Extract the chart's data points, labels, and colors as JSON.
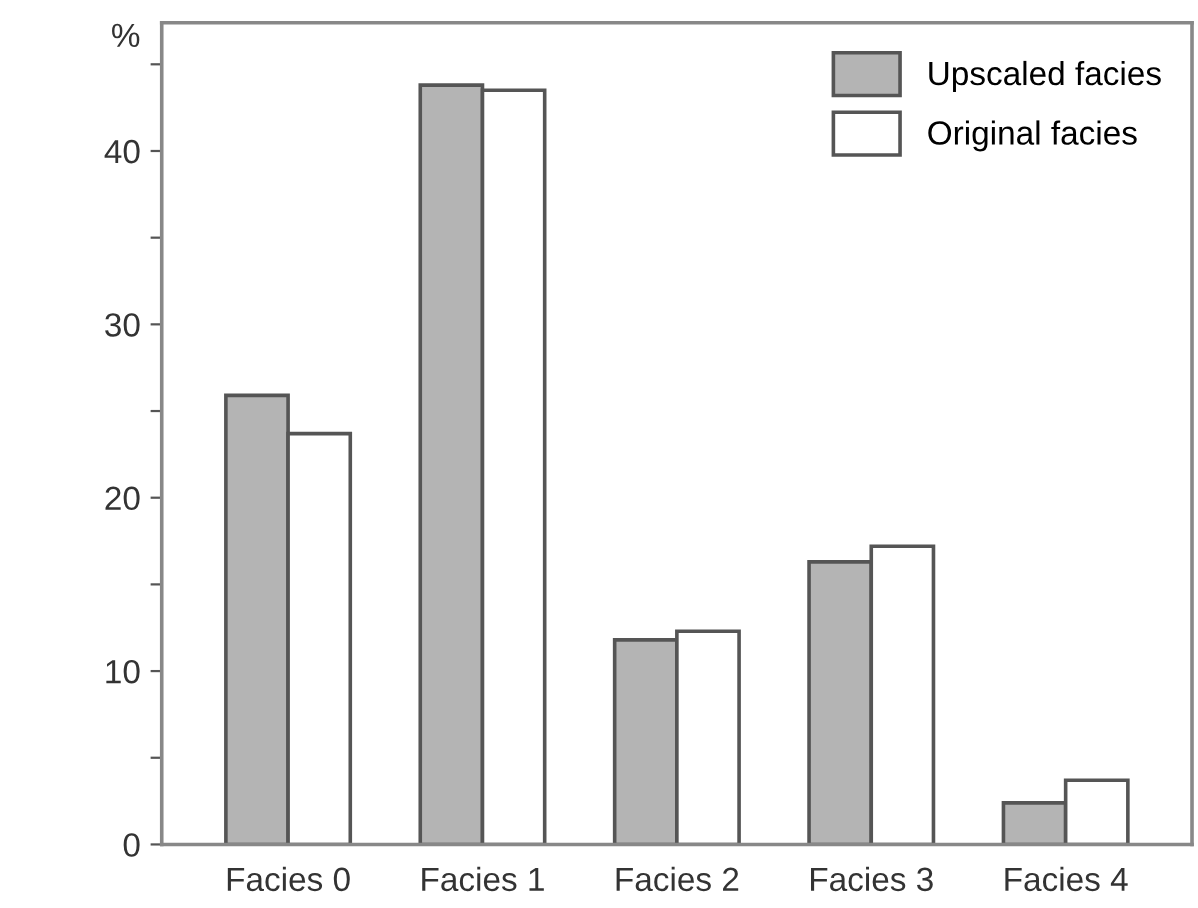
{
  "chart_data": {
    "type": "bar",
    "ylabel": "%",
    "categories": [
      "Facies 0",
      "Facies 1",
      "Facies 2",
      "Facies 3",
      "Facies 4"
    ],
    "series": [
      {
        "name": "Upscaled facies",
        "color": "#b4b4b4",
        "values": [
          25.9,
          43.8,
          11.8,
          16.3,
          2.4
        ]
      },
      {
        "name": "Original facies",
        "color": "#ffffff",
        "values": [
          23.7,
          43.5,
          12.3,
          17.2,
          3.7
        ]
      }
    ],
    "ylim": [
      0,
      47.4
    ],
    "yticks": [
      0,
      {
        "value": 5,
        "label": null
      },
      10,
      {
        "value": 15,
        "label": null
      },
      20,
      {
        "value": 25,
        "label": null
      },
      30,
      {
        "value": 35,
        "label": null
      },
      40,
      {
        "value": 45,
        "label": null
      }
    ],
    "grid": false,
    "legend": "top right"
  }
}
